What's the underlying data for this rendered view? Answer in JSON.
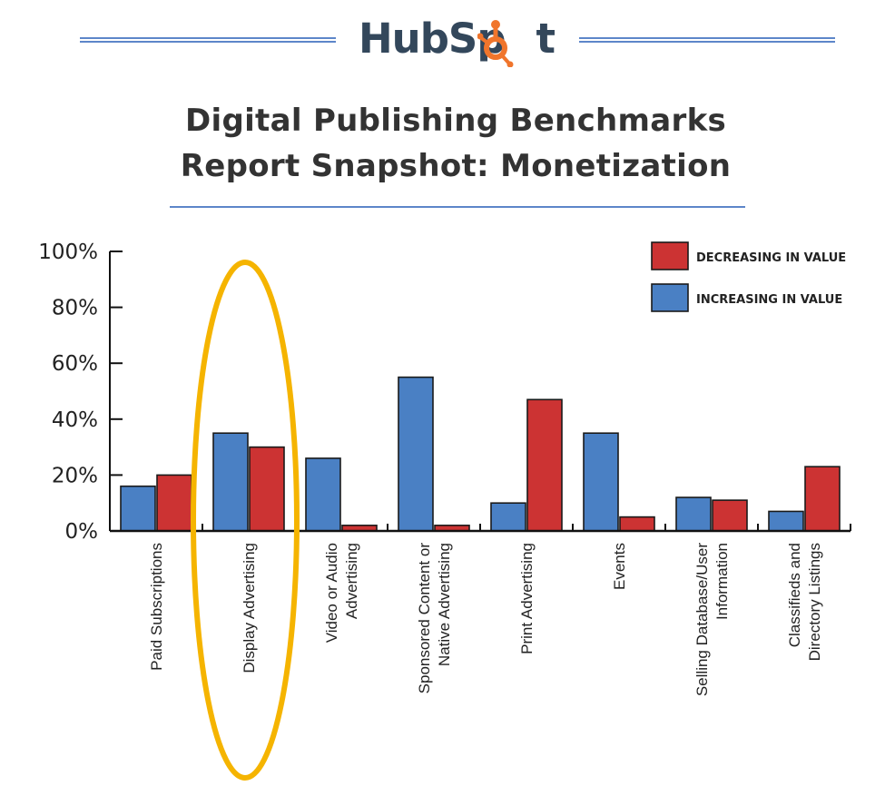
{
  "header": {
    "logo_text_1": "HubSp",
    "logo_text_2": "t",
    "title_line1": "Digital Publishing Benchmarks",
    "title_line2": "Report Snapshot: Monetization"
  },
  "colors": {
    "increasing": "#4a80c4",
    "decreasing": "#cc3333",
    "highlight": "#f5b400",
    "brand_orange": "#f0752c"
  },
  "chart_data": {
    "type": "bar",
    "categories": [
      [
        "Paid Subscriptions"
      ],
      [
        "Display Advertising"
      ],
      [
        "Video or Audio",
        "Advertising"
      ],
      [
        "Sponsored Content or",
        "Native Advertising"
      ],
      [
        "Print Advertising"
      ],
      [
        "Events"
      ],
      [
        "Selling Database/User",
        "Information"
      ],
      [
        "Classifieds and",
        "Directory Listings"
      ]
    ],
    "series": [
      {
        "name": "INCREASING IN VALUE",
        "color": "#4a80c4",
        "values": [
          16,
          35,
          26,
          55,
          10,
          35,
          12,
          7
        ]
      },
      {
        "name": "DECREASING IN VALUE",
        "color": "#cc3333",
        "values": [
          20,
          30,
          2,
          2,
          47,
          5,
          11,
          23
        ]
      }
    ],
    "legend_order": [
      "DECREASING IN VALUE",
      "INCREASING IN VALUE"
    ],
    "legend_position": "top-right",
    "y_ticks": [
      "0%",
      "20%",
      "40%",
      "60%",
      "80%",
      "100%"
    ],
    "ylim": [
      0,
      100
    ],
    "grid": false,
    "highlighted_category": "Display Advertising"
  }
}
